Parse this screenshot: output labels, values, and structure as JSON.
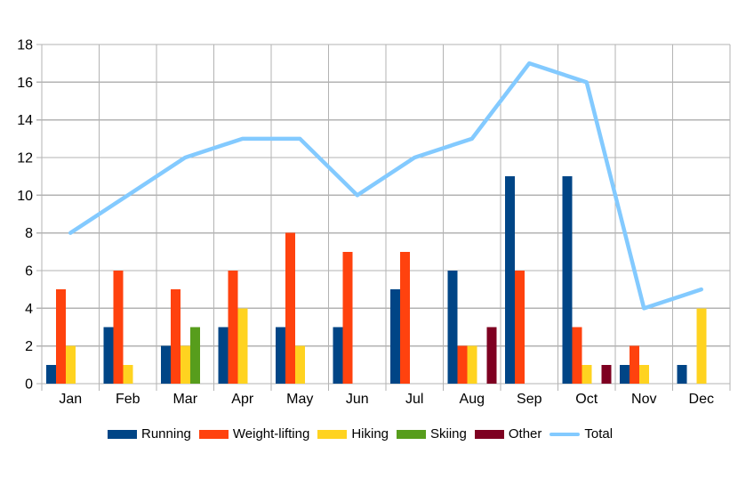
{
  "chart_data": {
    "type": "bar+line",
    "title": "",
    "xlabel": "",
    "ylabel": "",
    "categories": [
      "Jan",
      "Feb",
      "Mar",
      "Apr",
      "May",
      "Jun",
      "Jul",
      "Aug",
      "Sep",
      "Oct",
      "Nov",
      "Dec"
    ],
    "series": [
      {
        "name": "Running",
        "type": "bar",
        "color": "#004586",
        "values": [
          1,
          3,
          2,
          3,
          3,
          3,
          5,
          6,
          11,
          11,
          1,
          1
        ]
      },
      {
        "name": "Weight-lifting",
        "type": "bar",
        "color": "#FF420E",
        "values": [
          5,
          6,
          5,
          6,
          8,
          7,
          7,
          2,
          6,
          3,
          2,
          0
        ]
      },
      {
        "name": "Hiking",
        "type": "bar",
        "color": "#FFD320",
        "values": [
          2,
          1,
          2,
          4,
          2,
          0,
          0,
          2,
          0,
          1,
          1,
          4
        ]
      },
      {
        "name": "Skiing",
        "type": "bar",
        "color": "#579D1C",
        "values": [
          0,
          0,
          3,
          0,
          0,
          0,
          0,
          0,
          0,
          0,
          0,
          0
        ]
      },
      {
        "name": "Other",
        "type": "bar",
        "color": "#7E0021",
        "values": [
          0,
          0,
          0,
          0,
          0,
          0,
          0,
          3,
          0,
          1,
          0,
          0
        ]
      },
      {
        "name": "Total",
        "type": "line",
        "color": "#83CAFF",
        "values": [
          8,
          10,
          12,
          13,
          13,
          10,
          12,
          13,
          17,
          16,
          4,
          5
        ]
      }
    ],
    "ylim": [
      0,
      18
    ],
    "yticks": [
      0,
      2,
      4,
      6,
      8,
      10,
      12,
      14,
      16,
      18
    ],
    "grid": true,
    "legend_position": "bottom"
  },
  "colors": {
    "background": "#ffffff",
    "grid": "#b3b3b3",
    "text": "#000000"
  }
}
